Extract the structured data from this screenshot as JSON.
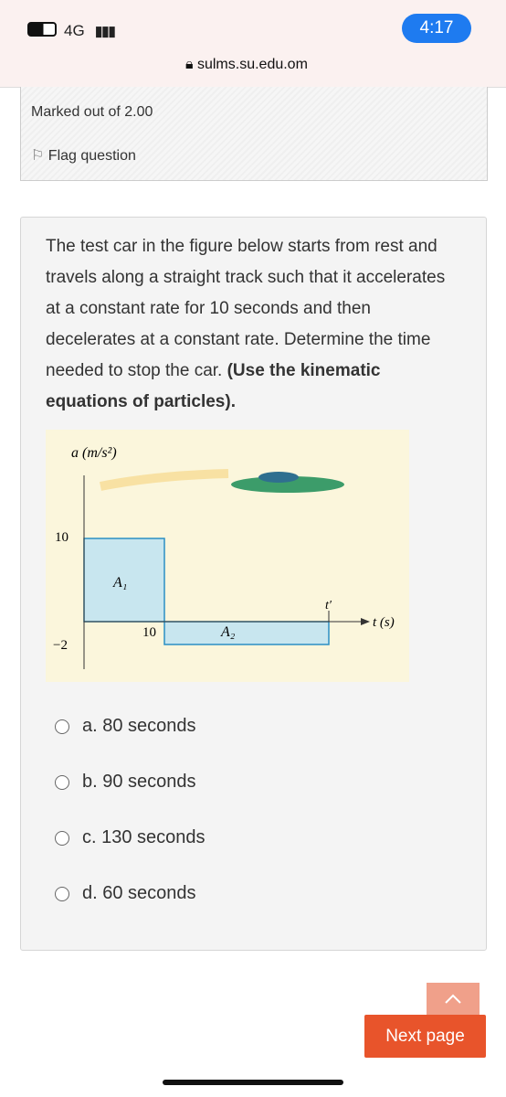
{
  "status_bar": {
    "network": "4G",
    "time": "4:17"
  },
  "browser": {
    "url": "sulms.su.edu.om"
  },
  "info": {
    "marked": "Marked out of 2.00",
    "flag": "Flag question"
  },
  "question": {
    "text": "The test car in the figure below starts from rest and travels along a straight track such that it accelerates at a constant rate for 10 seconds and then decelerates at a constant rate. Determine the time needed to stop the car.",
    "bold": "(Use the kinematic equations of particles)."
  },
  "figure": {
    "y_axis_label": "a (m/s²)",
    "x_axis_label": "t (s)",
    "y_tick_top": "10",
    "y_tick_bottom": "−2",
    "x_tick": "10",
    "area_1": "A₁",
    "area_2": "A₂",
    "t_prime": "t′"
  },
  "options": [
    "a. 80 seconds",
    "b. 90 seconds",
    "c. 130 seconds",
    "d. 60 seconds"
  ],
  "buttons": {
    "next": "Next page"
  }
}
